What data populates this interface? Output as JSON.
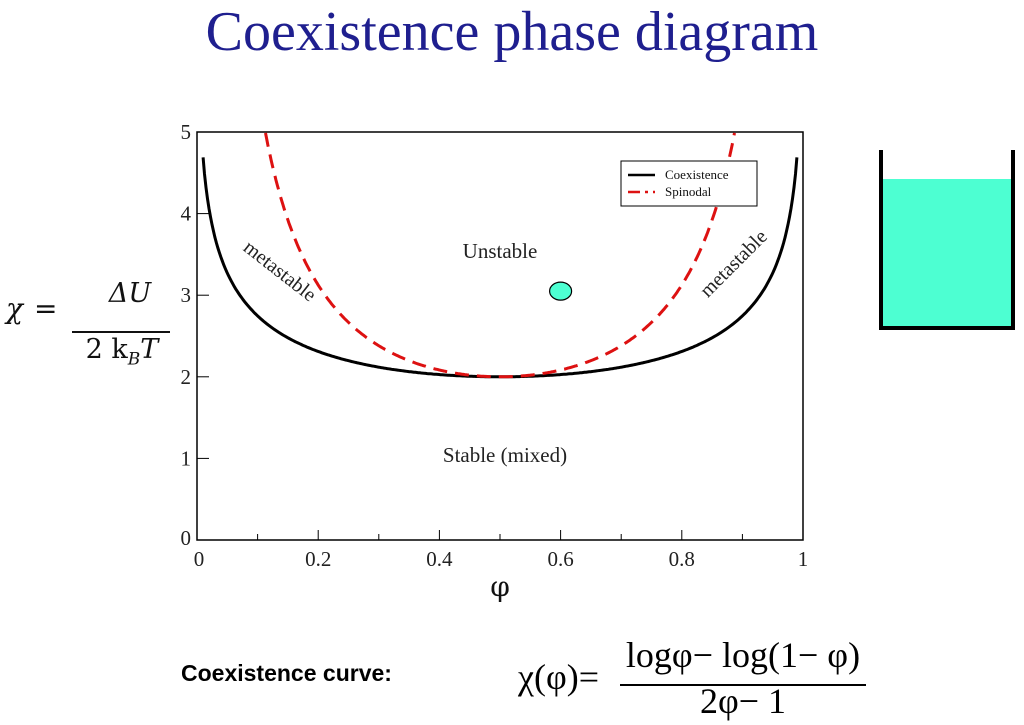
{
  "title": "Coexistence phase diagram",
  "chart_data": {
    "type": "line",
    "title": "Coexistence phase diagram",
    "xlabel": "φ",
    "ylabel": "χ = ΔU / (2 k_B T)",
    "xlim": [
      0,
      1
    ],
    "ylim": [
      0,
      5
    ],
    "xticks": [
      "0",
      "0.2",
      "0.4",
      "0.6",
      "0.8",
      "1"
    ],
    "yticks": [
      "0",
      "1",
      "2",
      "3",
      "4",
      "5"
    ],
    "grid": false,
    "legend_position": "upper right",
    "series": [
      {
        "name": "Coexistence",
        "style": "solid",
        "color": "#000000",
        "x": [
          0.01,
          0.02,
          0.05,
          0.1,
          0.15,
          0.2,
          0.3,
          0.4,
          0.5,
          0.6,
          0.7,
          0.8,
          0.85,
          0.9,
          0.95,
          0.98,
          0.99
        ],
        "y": [
          4.69,
          4.05,
          3.27,
          2.75,
          2.52,
          2.31,
          2.12,
          2.03,
          2.0,
          2.03,
          2.12,
          2.31,
          2.48,
          2.75,
          3.27,
          4.05,
          4.69
        ]
      },
      {
        "name": "Spinodal",
        "style": "dashed",
        "color": "#dd1111",
        "x": [
          0.113,
          0.15,
          0.2,
          0.3,
          0.4,
          0.5,
          0.6,
          0.7,
          0.8,
          0.85,
          0.887
        ],
        "y": [
          5.0,
          3.92,
          3.13,
          2.38,
          2.08,
          2.0,
          2.08,
          2.38,
          3.13,
          3.92,
          5.0
        ]
      }
    ],
    "annotations": [
      {
        "text": "Unstable",
        "x": 0.5,
        "y": 3.5
      },
      {
        "text": "Stable (mixed)",
        "x": 0.5,
        "y": 1.0
      },
      {
        "text": "metastable",
        "x": 0.13,
        "y": 3.3,
        "rotation": 38
      },
      {
        "text": "metastable",
        "x": 0.87,
        "y": 3.3,
        "rotation": -45
      }
    ],
    "marker": {
      "x": 0.6,
      "y": 3.05,
      "color": "#4dffd2"
    }
  },
  "left_equation": {
    "chi": "χ",
    "equals": "=",
    "numerator": "ΔU",
    "denominator": "2 k",
    "subscript": "B",
    "denominator_tail": "T"
  },
  "beaker": {
    "liquid_color": "#4dffd2"
  },
  "bottom": {
    "caption": "Coexistence curve:",
    "formula_lhs": "χ(φ)=",
    "formula_numerator": "logφ− log(1− φ)",
    "formula_denominator": "2φ− 1"
  }
}
